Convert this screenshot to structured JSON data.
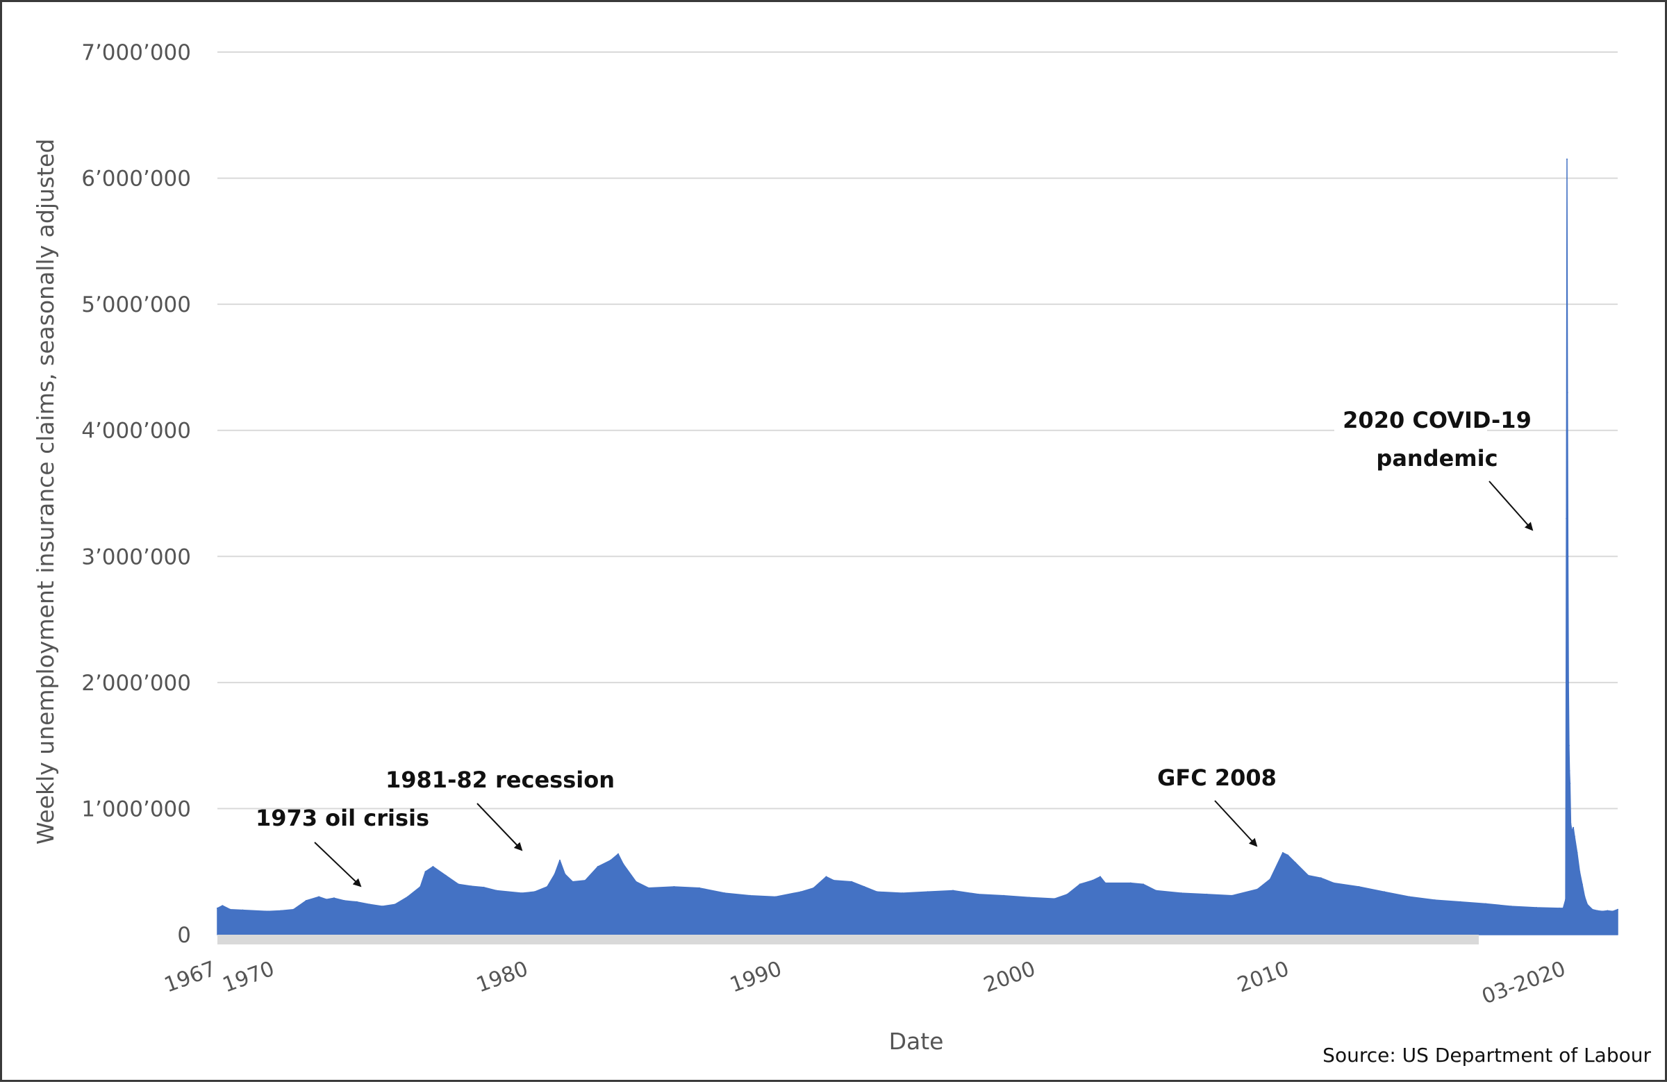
{
  "chart_data": {
    "type": "area",
    "title": "",
    "xlabel": "Date",
    "ylabel": "Weekly unemployment insurance claims, seasonally adjusted",
    "ylim": [
      0,
      7000000
    ],
    "xlim": [
      1967.0,
      2022.2
    ],
    "y_ticks": [
      {
        "value": 0,
        "label": "0"
      },
      {
        "value": 1000000,
        "label": "1’000’000"
      },
      {
        "value": 2000000,
        "label": "2’000’000"
      },
      {
        "value": 3000000,
        "label": "3’000’000"
      },
      {
        "value": 4000000,
        "label": "4’000’000"
      },
      {
        "value": 5000000,
        "label": "5’000’000"
      },
      {
        "value": 6000000,
        "label": "6’000’000"
      },
      {
        "value": 7000000,
        "label": "7’000’000"
      }
    ],
    "x_ticks": [
      {
        "value": 1967.0,
        "label": "1967"
      },
      {
        "value": 1969.3,
        "label": "1970"
      },
      {
        "value": 1979.3,
        "label": "1980"
      },
      {
        "value": 1989.3,
        "label": "1990"
      },
      {
        "value": 1999.3,
        "label": "2000"
      },
      {
        "value": 2009.3,
        "label": "2010"
      },
      {
        "value": 2020.2,
        "label": "03-2020"
      }
    ],
    "grid": true,
    "legend": "none",
    "series": [
      {
        "color": "#4472c4",
        "x": [
          1967.0,
          1967.2,
          1967.5,
          1968.0,
          1969.0,
          1969.5,
          1970.0,
          1970.5,
          1971.0,
          1971.3,
          1971.6,
          1972.0,
          1972.5,
          1973.0,
          1973.5,
          1974.0,
          1974.5,
          1975.0,
          1975.2,
          1975.5,
          1976.0,
          1976.5,
          1977.0,
          1977.5,
          1978.0,
          1979.0,
          1979.5,
          1980.0,
          1980.3,
          1980.5,
          1980.7,
          1981.0,
          1981.5,
          1982.0,
          1982.5,
          1982.8,
          1983.0,
          1983.5,
          1984.0,
          1985.0,
          1986.0,
          1987.0,
          1988.0,
          1989.0,
          1990.0,
          1990.5,
          1991.0,
          1991.3,
          1992.0,
          1992.5,
          1993.0,
          1994.0,
          1995.0,
          1996.0,
          1997.0,
          1998.0,
          1999.0,
          2000.0,
          2000.5,
          2001.0,
          2001.5,
          2001.8,
          2002.0,
          2003.0,
          2003.5,
          2004.0,
          2005.0,
          2006.0,
          2007.0,
          2008.0,
          2008.5,
          2009.0,
          2009.2,
          2009.5,
          2010.0,
          2010.5,
          2011.0,
          2012.0,
          2013.0,
          2014.0,
          2015.0,
          2016.0,
          2017.0,
          2018.0,
          2019.0,
          2019.9,
          2020.05,
          2020.15,
          2020.18,
          2020.2,
          2020.22,
          2020.24,
          2020.26,
          2020.28,
          2020.3,
          2020.32,
          2020.35,
          2020.4,
          2020.45,
          2020.5,
          2020.6,
          2020.7,
          2020.8,
          2020.9,
          2021.0,
          2021.2,
          2021.4,
          2021.6,
          2021.8,
          2022.0,
          2022.2
        ],
        "y": [
          210000,
          230000,
          200000,
          195000,
          185000,
          190000,
          200000,
          270000,
          300000,
          280000,
          290000,
          270000,
          260000,
          240000,
          225000,
          240000,
          300000,
          380000,
          500000,
          540000,
          470000,
          400000,
          385000,
          375000,
          350000,
          330000,
          340000,
          380000,
          480000,
          590000,
          480000,
          420000,
          430000,
          540000,
          590000,
          640000,
          560000,
          420000,
          370000,
          380000,
          370000,
          330000,
          310000,
          300000,
          340000,
          370000,
          460000,
          430000,
          420000,
          380000,
          340000,
          330000,
          340000,
          350000,
          320000,
          310000,
          295000,
          285000,
          320000,
          400000,
          430000,
          460000,
          410000,
          410000,
          400000,
          350000,
          330000,
          320000,
          310000,
          360000,
          440000,
          650000,
          630000,
          570000,
          470000,
          450000,
          410000,
          380000,
          340000,
          300000,
          275000,
          260000,
          245000,
          225000,
          215000,
          210000,
          210000,
          280000,
          3300000,
          6150000,
          4300000,
          3000000,
          2000000,
          1500000,
          1300000,
          1200000,
          880000,
          820000,
          850000,
          780000,
          650000,
          500000,
          400000,
          300000,
          240000,
          200000,
          190000,
          185000,
          190000,
          185000,
          200000
        ]
      }
    ],
    "annotations": [
      {
        "text": "1973 oil crisis",
        "x": 1973.0,
        "y": 230000
      },
      {
        "text": "1981-82 recession",
        "x": 1979.3,
        "y": 360000
      },
      {
        "text": "GFC 2008",
        "x": 2009.0,
        "y": 640000
      },
      {
        "text": "2020 COVID-19",
        "x": 2020.05,
        "y": 3200000
      },
      {
        "text": "pandemic",
        "x": 2020.05,
        "y": 3200000
      }
    ],
    "source": "Source: US Department of Labour"
  }
}
